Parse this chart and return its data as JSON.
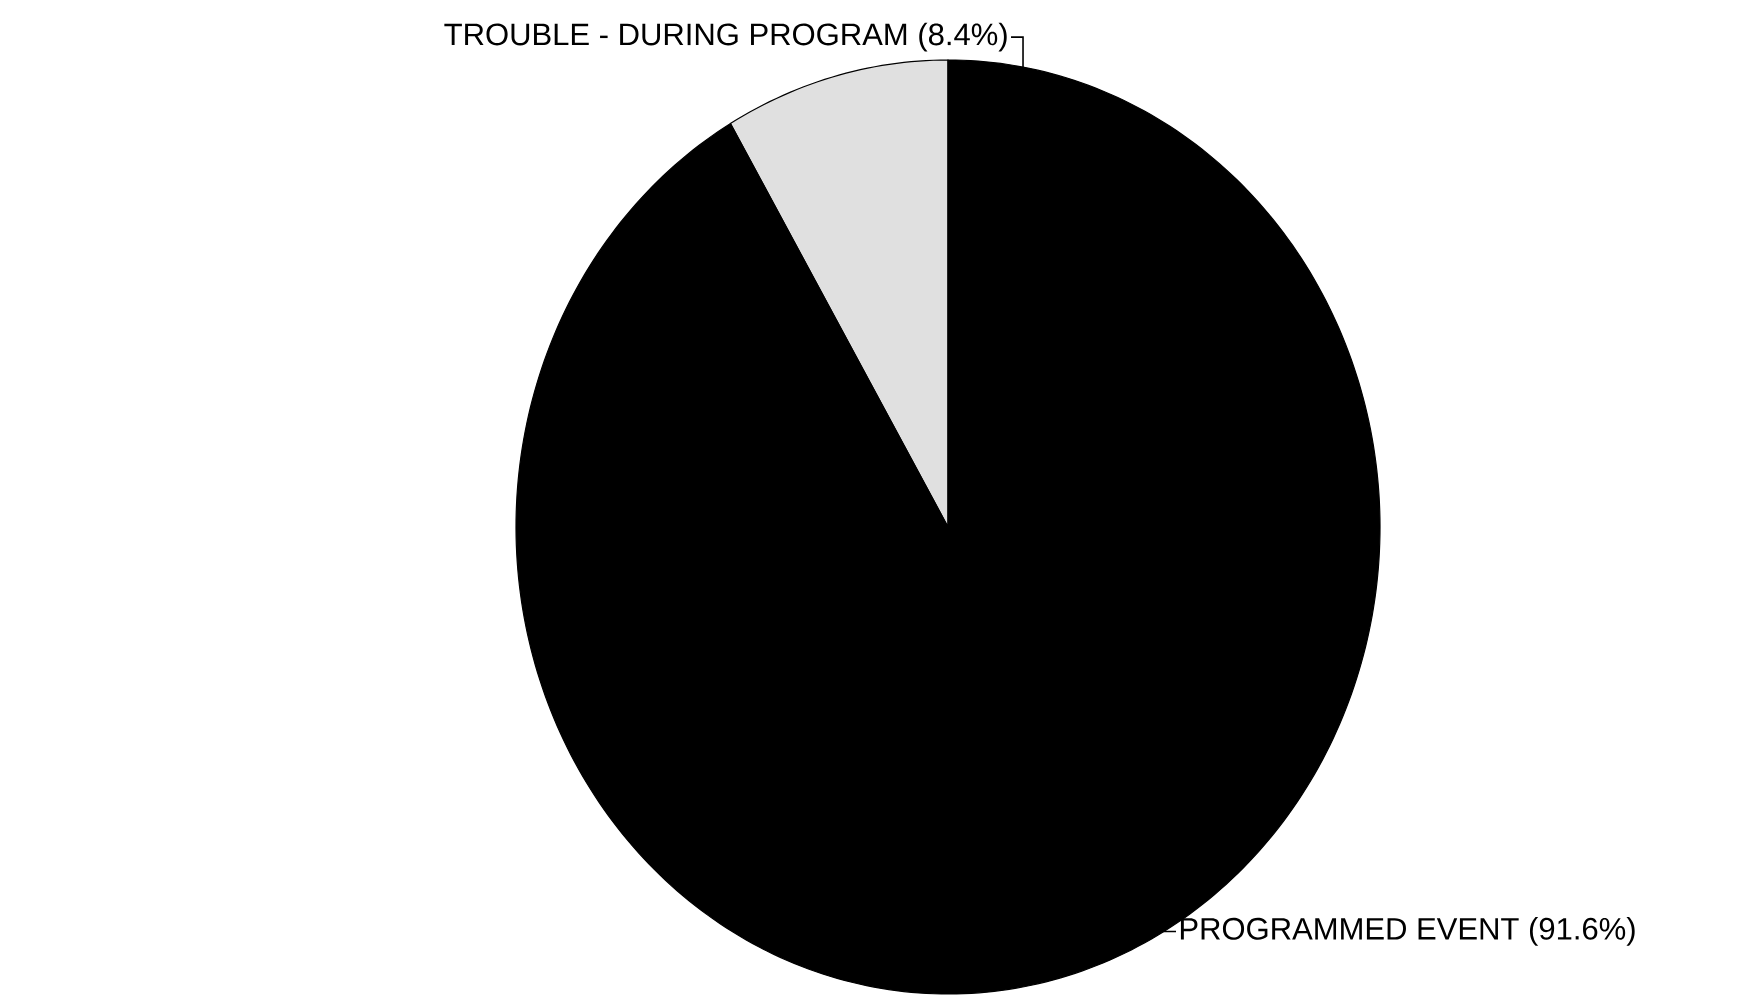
{
  "chart_data": {
    "type": "pie",
    "categories": [
      "TROUBLE - DURING PROGRAM",
      "PROGRAMMED EVENT"
    ],
    "values": [
      8.4,
      91.6
    ],
    "value_labels": [
      "(8.4%)",
      "(91.6%)"
    ],
    "colors": [
      "#e0e0e0",
      "#000000"
    ]
  }
}
